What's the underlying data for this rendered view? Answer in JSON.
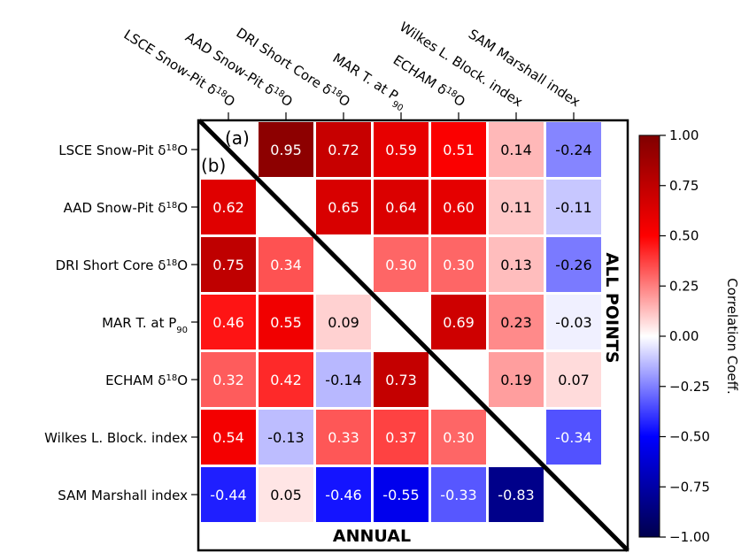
{
  "chart_data": {
    "type": "heatmap",
    "rows": [
      {
        "label": "LSCE Snow-Pit δ",
        "sup": "18",
        "tail": "O"
      },
      {
        "label": "AAD Snow-Pit δ",
        "sup": "18",
        "tail": "O"
      },
      {
        "label": "DRI Short Core δ",
        "sup": "18",
        "tail": "O"
      },
      {
        "label": "MAR T. at P",
        "sub": "90",
        "tail": ""
      },
      {
        "label": "ECHAM δ",
        "sup": "18",
        "tail": "O"
      },
      {
        "label": "Wilkes L. Block. index",
        "tail": ""
      },
      {
        "label": "SAM Marshall index",
        "tail": ""
      }
    ],
    "values": [
      [
        null,
        0.95,
        0.72,
        0.59,
        0.51,
        0.14,
        -0.24
      ],
      [
        0.62,
        null,
        0.65,
        0.64,
        0.6,
        0.11,
        -0.11
      ],
      [
        0.75,
        0.34,
        null,
        0.3,
        0.3,
        0.13,
        -0.26
      ],
      [
        0.46,
        0.55,
        0.09,
        null,
        0.69,
        0.23,
        -0.03
      ],
      [
        0.32,
        0.42,
        -0.14,
        0.73,
        null,
        0.19,
        0.07
      ],
      [
        0.54,
        -0.13,
        0.33,
        0.37,
        0.3,
        null,
        -0.34
      ],
      [
        -0.44,
        0.05,
        -0.46,
        -0.55,
        -0.33,
        -0.83,
        null
      ]
    ],
    "value_labels": [
      [
        "",
        "0.95",
        "0.72",
        "0.59",
        "0.51",
        "0.14",
        "-0.24"
      ],
      [
        "0.62",
        "",
        "0.65",
        "0.64",
        "0.60",
        "0.11",
        "-0.11"
      ],
      [
        "0.75",
        "0.34",
        "",
        "0.30",
        "0.30",
        "0.13",
        "-0.26"
      ],
      [
        "0.46",
        "0.55",
        "0.09",
        "",
        "0.69",
        "0.23",
        "-0.03"
      ],
      [
        "0.32",
        "0.42",
        "-0.14",
        "0.73",
        "",
        "0.19",
        "0.07"
      ],
      [
        "0.54",
        "-0.13",
        "0.33",
        "0.37",
        "0.30",
        "",
        "-0.34"
      ],
      [
        "-0.44",
        "0.05",
        "-0.46",
        "-0.55",
        "-0.33",
        "-0.83",
        ""
      ]
    ],
    "upper_triangle_label": "ALL POINTS",
    "lower_triangle_label": "ANNUAL",
    "panel_a": "(a)",
    "panel_b": "(b)",
    "colorbar": {
      "label": "Correlation Coeff.",
      "range": [
        -1.0,
        1.0
      ],
      "ticks": [
        "1.00",
        "0.75",
        "0.50",
        "0.25",
        "0.00",
        "−0.25",
        "−0.50",
        "−0.75",
        "−1.00"
      ],
      "tick_values": [
        1.0,
        0.75,
        0.5,
        0.25,
        0.0,
        -0.25,
        -0.5,
        -0.75,
        -1.0
      ],
      "colormap": "seismic"
    }
  }
}
